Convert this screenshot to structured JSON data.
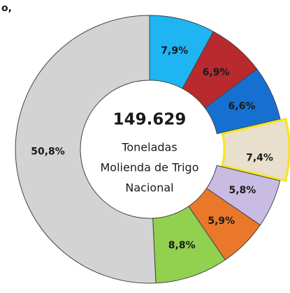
{
  "chart_data": {
    "type": "donut",
    "fragment": "o,",
    "center_value": "149.629",
    "center_lines": [
      "Toneladas",
      "Molienda de Trigo",
      "Nacional"
    ],
    "values": [
      7.9,
      6.9,
      6.6,
      7.4,
      5.8,
      5.9,
      8.8,
      50.8
    ],
    "value_labels": [
      "7,9%",
      "6,9%",
      "6,6%",
      "7,4%",
      "5,8%",
      "5,9%",
      "8,8%",
      "50,8%"
    ],
    "colors": [
      "#1fb4f2",
      "#b82a2e",
      "#1670d2",
      "#e9dfcd",
      "#c9bce3",
      "#ea782a",
      "#92d050",
      "#d3d3d3"
    ],
    "explode": [
      false,
      false,
      false,
      true,
      false,
      false,
      false,
      false
    ]
  }
}
